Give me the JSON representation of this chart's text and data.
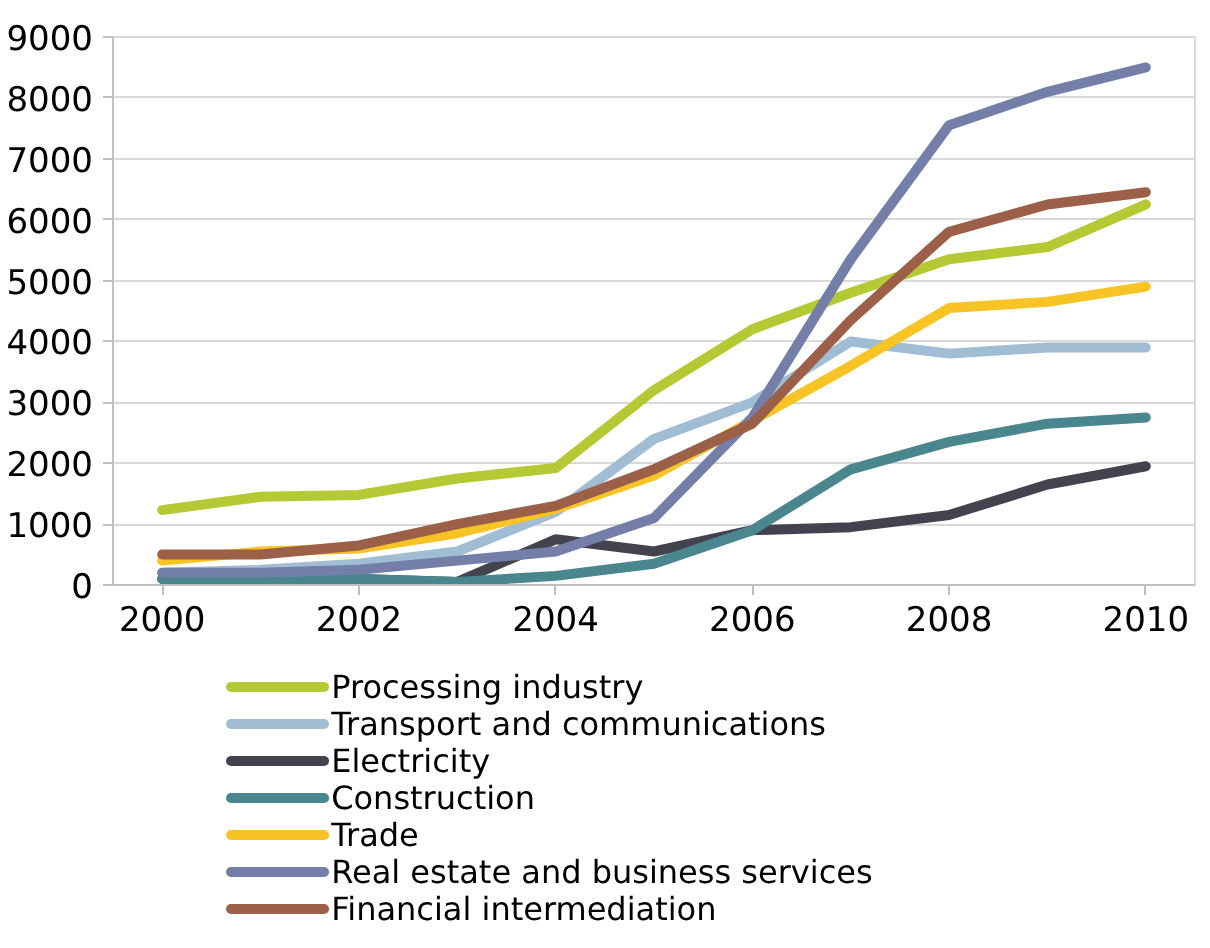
{
  "chart_data": {
    "type": "line",
    "x": [
      2000,
      2001,
      2002,
      2003,
      2004,
      2005,
      2006,
      2007,
      2008,
      2009,
      2010
    ],
    "xlim": [
      1999.5,
      2010.5
    ],
    "xticks": [
      2000,
      2002,
      2004,
      2006,
      2008,
      2010
    ],
    "ylim": [
      0,
      9000
    ],
    "yticks": [
      0,
      1000,
      2000,
      3000,
      4000,
      5000,
      6000,
      7000,
      8000,
      9000
    ],
    "grid": "y",
    "legend": "bottom",
    "marker": "none",
    "line_style": "solid",
    "series": [
      {
        "name": "Processing industry",
        "color": "#b5c934",
        "values": [
          1230,
          1450,
          1480,
          1750,
          1920,
          3200,
          4200,
          4800,
          5350,
          5550,
          6250
        ]
      },
      {
        "name": "Transport and communications",
        "color": "#a0bdd4",
        "values": [
          200,
          250,
          350,
          550,
          1200,
          2400,
          3000,
          4000,
          3800,
          3900,
          3900
        ]
      },
      {
        "name": "Electricity",
        "color": "#43434f",
        "values": [
          100,
          100,
          100,
          50,
          750,
          550,
          900,
          950,
          1150,
          1650,
          1950
        ]
      },
      {
        "name": "Construction",
        "color": "#4a868e",
        "values": [
          100,
          100,
          100,
          50,
          150,
          350,
          900,
          1900,
          2350,
          2650,
          2750
        ]
      },
      {
        "name": "Trade",
        "color": "#f7c325",
        "values": [
          400,
          550,
          600,
          850,
          1250,
          1800,
          2700,
          3600,
          4550,
          4650,
          4900
        ]
      },
      {
        "name": "Real estate and business services",
        "color": "#737fa9",
        "values": [
          200,
          200,
          250,
          400,
          550,
          1100,
          2750,
          5350,
          7550,
          8100,
          8500
        ]
      },
      {
        "name": "Financial intermediation",
        "color": "#9c5f48",
        "values": [
          500,
          500,
          650,
          1000,
          1300,
          1900,
          2650,
          4350,
          5800,
          6250,
          6450
        ]
      }
    ]
  }
}
